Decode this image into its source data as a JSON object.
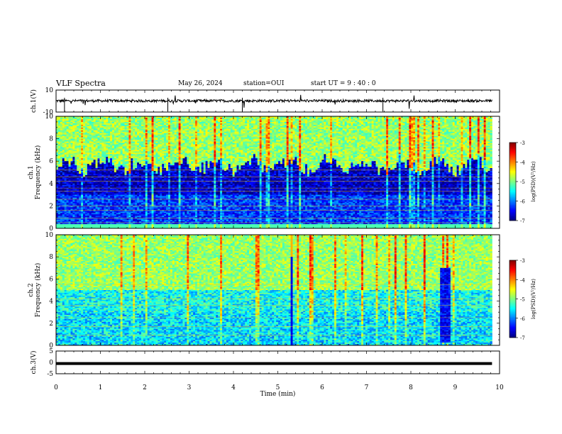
{
  "header": {
    "title": "VLF Spectra",
    "date": "May 26, 2024",
    "station": "station=OUI",
    "start_time": "start  UT  =   9  : 40 : 0"
  },
  "chart_data": [
    {
      "panel": "ch1-waveform",
      "type": "line",
      "ylabel": "ch.1(V)",
      "ylim": [
        -10,
        10
      ],
      "yticks": [
        "10",
        "-10"
      ],
      "xlim": [
        0,
        10
      ]
    },
    {
      "panel": "ch1-spectrogram",
      "type": "heatmap",
      "ylabel": "ch.1\nFrequency (kHz)",
      "ylim": [
        0,
        10
      ],
      "yticks": [
        "0",
        "2",
        "4",
        "6",
        "8",
        "10"
      ],
      "xlim": [
        0,
        10
      ],
      "colorbar": {
        "label": "log(PSD)(V²/Hz)",
        "range": [
          -7,
          -3
        ],
        "ticks": [
          "-3",
          "-4",
          "-5",
          "-6",
          "-7"
        ]
      }
    },
    {
      "panel": "ch2-spectrogram",
      "type": "heatmap",
      "ylabel": "ch.2\nFrequency (kHz)",
      "ylim": [
        0,
        10
      ],
      "yticks": [
        "0",
        "2",
        "4",
        "6",
        "8",
        "10"
      ],
      "xlim": [
        0,
        10
      ],
      "colorbar": {
        "label": "log(PSD)(V²/Hz)",
        "range": [
          -7,
          -3
        ],
        "ticks": [
          "-3",
          "-4",
          "-5",
          "-6",
          "-7"
        ]
      },
      "bursts_min": [
        5.27,
        8.6,
        8.9
      ]
    },
    {
      "panel": "ch3-waveform",
      "type": "line",
      "ylabel": "ch.3(V)",
      "ylim": [
        -5,
        5
      ],
      "yticks": [
        "5",
        "0",
        "-5"
      ],
      "xlim": [
        0,
        10
      ],
      "level": -0.5
    }
  ],
  "x_axis": {
    "label": "Time (min)",
    "ticks": [
      "0",
      "1",
      "2",
      "3",
      "4",
      "5",
      "6",
      "7",
      "8",
      "9",
      "10"
    ],
    "data_end_min": 9.83
  },
  "colors": {
    "trace": "#000000",
    "axis": "#000000"
  }
}
